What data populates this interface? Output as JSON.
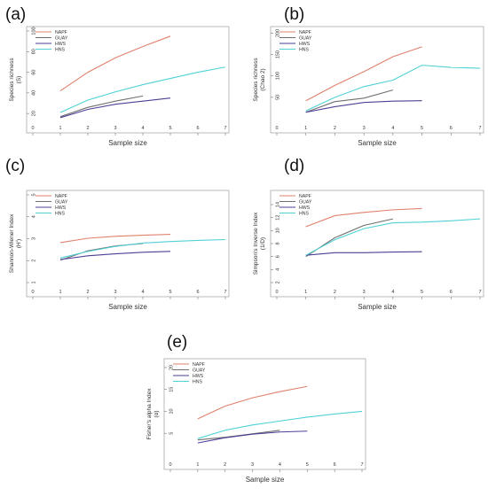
{
  "figure": {
    "legend_labels": [
      "NAPF",
      "GUAY",
      "HWS",
      "HNS"
    ],
    "colors": {
      "NAPF": "#e0806c",
      "GUAY": "#6f6f6f",
      "HWS": "#4a3f96",
      "HNS": "#4fd1d6"
    }
  },
  "chart_data": [
    {
      "panel": "(a)",
      "type": "line",
      "title": "",
      "xlabel": "Sample size",
      "ylabel": "Species richness\n(S)",
      "xlim": [
        0,
        7
      ],
      "ylim": [
        15,
        100
      ],
      "xticks": [
        0,
        1,
        2,
        3,
        4,
        5,
        6,
        7
      ],
      "yticks": [
        20,
        40,
        60,
        80,
        100
      ],
      "legend": "top-left",
      "series": [
        {
          "name": "NAPF",
          "x": [
            1,
            2,
            3,
            4,
            5
          ],
          "values": [
            42,
            60,
            74,
            85,
            95
          ]
        },
        {
          "name": "GUAY",
          "x": [
            1,
            2,
            3,
            4
          ],
          "values": [
            17,
            26,
            32,
            37
          ]
        },
        {
          "name": "HWS",
          "x": [
            1,
            2,
            3,
            4,
            5
          ],
          "values": [
            16,
            24,
            29,
            32,
            35
          ]
        },
        {
          "name": "HNS",
          "x": [
            1,
            2,
            3,
            4,
            5,
            6,
            7
          ],
          "values": [
            21,
            33,
            41,
            48,
            54,
            60,
            65
          ]
        }
      ]
    },
    {
      "panel": "(b)",
      "type": "line",
      "title": "",
      "xlabel": "Sample size",
      "ylabel": "Species richness\n(Chao 2)",
      "xlim": [
        0,
        7
      ],
      "ylim": [
        0,
        205
      ],
      "xticks": [
        0,
        1,
        2,
        3,
        4,
        5,
        6,
        7
      ],
      "yticks": [
        50,
        100,
        150,
        200
      ],
      "legend": "top-left",
      "series": [
        {
          "name": "NAPF",
          "x": [
            1,
            2,
            3,
            4,
            5
          ],
          "values": [
            42,
            78,
            110,
            145,
            168
          ]
        },
        {
          "name": "GUAY",
          "x": [
            1,
            2,
            3,
            4
          ],
          "values": [
            15,
            40,
            48,
            67
          ]
        },
        {
          "name": "HWS",
          "x": [
            1,
            2,
            3,
            4,
            5
          ],
          "values": [
            15,
            28,
            38,
            41,
            42
          ]
        },
        {
          "name": "HNS",
          "x": [
            1,
            2,
            3,
            4,
            5,
            6,
            7
          ],
          "values": [
            18,
            50,
            75,
            90,
            125,
            120,
            118
          ]
        }
      ]
    },
    {
      "panel": "(c)",
      "type": "line",
      "title": "",
      "xlabel": "Sample size",
      "ylabel": "Shannon-Wiener Index\n(H')",
      "xlim": [
        0,
        7
      ],
      "ylim": [
        1,
        5
      ],
      "xticks": [
        0,
        1,
        2,
        3,
        4,
        5,
        6,
        7
      ],
      "yticks": [
        1,
        2,
        3,
        4,
        5
      ],
      "legend": "top-left",
      "series": [
        {
          "name": "NAPF",
          "x": [
            1,
            2,
            3,
            4,
            5
          ],
          "values": [
            2.82,
            3.02,
            3.11,
            3.16,
            3.2
          ]
        },
        {
          "name": "GUAY",
          "x": [
            1,
            2,
            3,
            4
          ],
          "values": [
            2.02,
            2.45,
            2.67,
            2.78
          ]
        },
        {
          "name": "HWS",
          "x": [
            1,
            2,
            3,
            4,
            5
          ],
          "values": [
            2.05,
            2.22,
            2.31,
            2.38,
            2.42
          ]
        },
        {
          "name": "HNS",
          "x": [
            1,
            2,
            3,
            4,
            5,
            6,
            7
          ],
          "values": [
            2.12,
            2.42,
            2.65,
            2.8,
            2.87,
            2.92,
            2.96
          ]
        }
      ]
    },
    {
      "panel": "(d)",
      "type": "line",
      "title": "",
      "xlabel": "Sample size",
      "ylabel": "Simpson's Inverse Index\n(1/D)",
      "xlim": [
        0,
        7
      ],
      "ylim": [
        2,
        15.5
      ],
      "xticks": [
        0,
        1,
        2,
        3,
        4,
        5,
        6,
        7
      ],
      "yticks": [
        2,
        4,
        6,
        8,
        10,
        12,
        14
      ],
      "legend": "top-left",
      "series": [
        {
          "name": "NAPF",
          "x": [
            1,
            2,
            3,
            4,
            5
          ],
          "values": [
            10.6,
            12.3,
            12.8,
            13.2,
            13.4
          ]
        },
        {
          "name": "GUAY",
          "x": [
            1,
            2,
            3,
            4
          ],
          "values": [
            6.0,
            8.9,
            10.8,
            11.8
          ]
        },
        {
          "name": "HWS",
          "x": [
            1,
            2,
            3,
            4,
            5
          ],
          "values": [
            6.2,
            6.6,
            6.6,
            6.7,
            6.75
          ]
        },
        {
          "name": "HNS",
          "x": [
            1,
            2,
            3,
            4,
            5,
            6,
            7
          ],
          "values": [
            6.2,
            8.6,
            10.3,
            11.2,
            11.3,
            11.5,
            11.8
          ]
        }
      ]
    },
    {
      "panel": "(e)",
      "type": "line",
      "title": "",
      "xlabel": "Sample size",
      "ylabel": "Fisher's alpha Index\n(α)",
      "xlim": [
        0,
        7
      ],
      "ylim": [
        0,
        21
      ],
      "xticks": [
        0,
        1,
        2,
        3,
        4,
        5,
        6,
        7
      ],
      "yticks": [
        5,
        10,
        15,
        20
      ],
      "legend": "top-left",
      "series": [
        {
          "name": "NAPF",
          "x": [
            1,
            2,
            3,
            4,
            5
          ],
          "values": [
            8.3,
            11.2,
            13.1,
            14.5,
            15.7
          ]
        },
        {
          "name": "GUAY",
          "x": [
            1,
            2,
            3,
            4
          ],
          "values": [
            3.5,
            4.1,
            4.9,
            5.7
          ]
        },
        {
          "name": "HWS",
          "x": [
            1,
            2,
            3,
            4,
            5
          ],
          "values": [
            2.8,
            4.0,
            4.8,
            5.3,
            5.5
          ]
        },
        {
          "name": "HNS",
          "x": [
            1,
            2,
            3,
            4,
            5,
            6,
            7
          ],
          "values": [
            3.8,
            5.7,
            6.9,
            7.8,
            8.7,
            9.4,
            10.0
          ]
        }
      ]
    }
  ]
}
